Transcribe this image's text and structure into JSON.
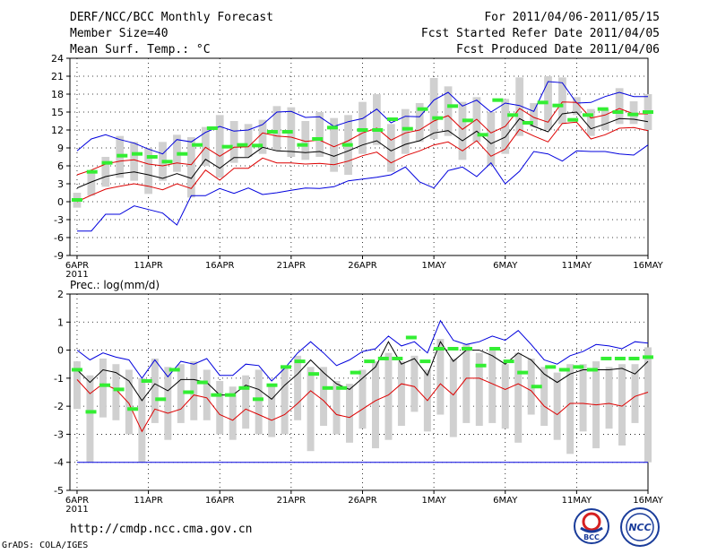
{
  "header": {
    "title": "DERF/NCC/BCC Monthly Forecast",
    "member_size": "Member Size=40",
    "variable": "Mean Surf. Temp.: °C",
    "period": "For 2011/04/06-2011/05/15",
    "refer_date": "Fcst Started Refer Date 2011/04/05",
    "produced_date": "Fcst Produced Date 2011/04/06"
  },
  "footer": {
    "url": "http://cmdp.ncc.cma.gov.cn",
    "grads": "GrADS: COLA/IGES",
    "logo_left_text": "BCC",
    "logo_right_text": "NCC"
  },
  "colors": {
    "max": "#0000dd",
    "min": "#dd0000",
    "mean": "#000000",
    "box": "#d0d0d0",
    "obs": "#33ee33",
    "grid": "#000000"
  },
  "chart_data": [
    {
      "type": "line",
      "title": "Mean Surf. Temp.: °C",
      "ylabel": "°C",
      "ylim": [
        -9,
        24
      ],
      "yticks": [
        -9,
        -6,
        -3,
        0,
        3,
        6,
        9,
        12,
        15,
        18,
        21,
        24
      ],
      "x_ticks": [
        {
          "day": 1,
          "label": "6APR",
          "sub": "2011"
        },
        {
          "day": 6,
          "label": "11APR"
        },
        {
          "day": 11,
          "label": "16APR"
        },
        {
          "day": 16,
          "label": "21APR"
        },
        {
          "day": 21,
          "label": "26APR"
        },
        {
          "day": 26,
          "label": "1MAY"
        },
        {
          "day": 31,
          "label": "6MAY"
        },
        {
          "day": 36,
          "label": "11MAY"
        },
        {
          "day": 41,
          "label": "16MAY"
        }
      ],
      "x_range": [
        0.5,
        41
      ],
      "series": [
        {
          "name": "ensemble max",
          "values": [
            8.5,
            10.5,
            11.2,
            10.4,
            9.8,
            8.8,
            8,
            10.4,
            10,
            11.6,
            12.6,
            11.8,
            12,
            12.9,
            15,
            15.1,
            14.1,
            14.2,
            12.6,
            13.4,
            13.9,
            15.5,
            13.2,
            14.3,
            14.2,
            17,
            18.3,
            16,
            17,
            15,
            16.5,
            16.1,
            15.1,
            20.1,
            19.9,
            16.5,
            16.6,
            17.6,
            18.3,
            17.6,
            17.6
          ]
        },
        {
          "name": "upper",
          "values": [
            4.5,
            5.3,
            6.3,
            6.8,
            7,
            6.3,
            6,
            6.5,
            6.2,
            9.1,
            7.6,
            9.1,
            9.2,
            11.5,
            11,
            10.8,
            10.1,
            10.3,
            9.2,
            10.2,
            11.5,
            12.3,
            10.3,
            11.5,
            12,
            13.5,
            14.4,
            12.1,
            13.8,
            11.5,
            12.6,
            15.6,
            14.1,
            13.3,
            16.7,
            16.6,
            14,
            14.5,
            15.6,
            14.7,
            14.7
          ]
        },
        {
          "name": "ensemble mean",
          "values": [
            2.3,
            3.3,
            4.2,
            4.7,
            5,
            4.5,
            3.9,
            4.7,
            3.9,
            7.1,
            5.6,
            7.4,
            7.4,
            9.1,
            8.5,
            8.4,
            8.2,
            8.4,
            7.6,
            8.5,
            9.5,
            10.2,
            8.5,
            9.6,
            10.2,
            11.5,
            11.9,
            10.2,
            11.8,
            9.7,
            10.8,
            13.9,
            12.6,
            11.7,
            14.7,
            15,
            12.2,
            13,
            13.9,
            13.8,
            13.4
          ]
        },
        {
          "name": "lower",
          "values": [
            0,
            1.1,
            2.1,
            2.6,
            3,
            2.6,
            2,
            3,
            2.2,
            5.3,
            3.6,
            5.6,
            5.6,
            7.3,
            6.5,
            6.5,
            6.3,
            6.4,
            6.2,
            6.8,
            7.7,
            8.3,
            6.5,
            7.7,
            8.5,
            9.5,
            10,
            8.5,
            10.2,
            7.6,
            8.8,
            12.1,
            11,
            10,
            13.1,
            13.3,
            10.5,
            11.2,
            12.3,
            12.4,
            11.9
          ]
        },
        {
          "name": "ensemble min",
          "values": [
            -4.9,
            -4.9,
            -2.1,
            -2.1,
            -0.7,
            -1.3,
            -1.9,
            -3.9,
            1,
            1,
            2.2,
            1.4,
            2.3,
            1.2,
            1.5,
            1.9,
            2.3,
            2.2,
            2.5,
            3.5,
            3.8,
            4.1,
            4.5,
            5.8,
            3.3,
            2.3,
            5.2,
            5.8,
            4.2,
            6.5,
            3,
            5.1,
            8.4,
            8,
            6.8,
            8.5,
            8.4,
            8.4,
            8,
            7.8,
            9.5
          ]
        }
      ],
      "boxes": {
        "lows": [
          -1,
          1,
          2.5,
          4,
          3.5,
          1.3,
          3.5,
          5,
          0.7,
          6,
          4,
          6.5,
          7.5,
          8,
          8.5,
          7.5,
          7,
          7.5,
          5,
          4.5,
          8,
          9.5,
          5,
          8,
          10,
          10.5,
          11,
          7,
          10,
          6,
          8,
          11,
          12.5,
          12,
          13,
          14.5,
          11,
          12,
          13,
          13,
          12
        ],
        "highs": [
          1.5,
          4.8,
          7.5,
          11,
          10,
          9,
          10,
          11.2,
          10.8,
          12.5,
          14.5,
          13.5,
          13,
          13.7,
          16,
          15.8,
          13.5,
          15,
          14,
          14.5,
          16.7,
          18,
          13,
          15.5,
          16.5,
          20.7,
          19.3,
          16.7,
          17.5,
          15,
          17.2,
          20.8,
          16.5,
          21,
          20.8,
          17.5,
          15.5,
          15.5,
          19,
          16.8,
          18
        ]
      },
      "observed": [
        0.3,
        5,
        6.5,
        7.7,
        8,
        7.5,
        6.7,
        8,
        9.5,
        12.3,
        9.2,
        9.5,
        9.4,
        11.7,
        11.7,
        9.5,
        10.5,
        12.4,
        9.5,
        12,
        12,
        13.8,
        12.2,
        15.5,
        14,
        16,
        13.6,
        11.2,
        17,
        14.5,
        13.2,
        16.6,
        16.1,
        13.7,
        14.5,
        15.5,
        15,
        14.6,
        15
      ]
    },
    {
      "type": "line",
      "title": "Prec.: log(mm/d)",
      "ylabel": "log(mm/d)",
      "ylim": [
        -5,
        2
      ],
      "yticks": [
        -5,
        -4,
        -3,
        -2,
        -1,
        0,
        1,
        2
      ],
      "x_ticks": [
        {
          "day": 1,
          "label": "6APR",
          "sub": "2011"
        },
        {
          "day": 6,
          "label": "11APR"
        },
        {
          "day": 11,
          "label": "16APR"
        },
        {
          "day": 16,
          "label": "21APR"
        },
        {
          "day": 21,
          "label": "26APR"
        },
        {
          "day": 26,
          "label": "1MAY"
        },
        {
          "day": 31,
          "label": "6MAY"
        },
        {
          "day": 36,
          "label": "11MAY"
        },
        {
          "day": 41,
          "label": "16MAY"
        }
      ],
      "x_range": [
        0.5,
        41
      ],
      "series": [
        {
          "name": "ensemble max",
          "values": [
            0,
            -0.35,
            -0.1,
            -0.25,
            -0.35,
            -1,
            -0.35,
            -0.95,
            -0.4,
            -0.5,
            -0.3,
            -0.9,
            -0.9,
            -0.5,
            -0.55,
            -1.1,
            -0.65,
            -0.1,
            0.3,
            -0.1,
            -0.55,
            -0.35,
            -0.05,
            0.05,
            0.5,
            0.15,
            0.3,
            -0.1,
            1.05,
            0.35,
            0.2,
            0.3,
            0.5,
            0.35,
            0.7,
            0.2,
            -0.35,
            -0.5,
            -0.2,
            -0.05,
            0.2,
            0.15,
            0.05,
            0.3,
            0.25
          ]
        },
        {
          "name": "ensemble mean",
          "values": [
            -0.7,
            -1.15,
            -0.7,
            -0.8,
            -1.1,
            -1.8,
            -1.2,
            -1.45,
            -1.05,
            -1.05,
            -1.15,
            -1.6,
            -1.6,
            -1.25,
            -1.4,
            -1.75,
            -1.25,
            -0.85,
            -0.35,
            -0.8,
            -1.2,
            -1.4,
            -1,
            -0.6,
            0.3,
            -0.5,
            -0.3,
            -0.9,
            0.3,
            -0.4,
            0,
            0,
            -0.2,
            -0.5,
            -0.1,
            -0.35,
            -0.85,
            -1.15,
            -0.85,
            -0.7,
            -0.7,
            -0.7,
            -0.65,
            -0.85,
            -0.4
          ]
        },
        {
          "name": "lower",
          "values": [
            -1.05,
            -1.55,
            -1.2,
            -1.4,
            -1.9,
            -2.9,
            -2.1,
            -2.25,
            -2.1,
            -1.6,
            -1.7,
            -2.3,
            -2.5,
            -2.1,
            -2.3,
            -2.5,
            -2.3,
            -1.9,
            -1.45,
            -1.8,
            -2.3,
            -2.4,
            -2.1,
            -1.8,
            -1.6,
            -1.2,
            -1.3,
            -1.8,
            -1.2,
            -1.6,
            -1,
            -1,
            -1.2,
            -1.4,
            -1.2,
            -1.45,
            -2,
            -2.3,
            -1.9,
            -1.9,
            -1.95,
            -1.9,
            -2,
            -1.65,
            -1.5
          ]
        },
        {
          "name": "ensemble min",
          "values": [
            -4,
            -4,
            -4,
            -4,
            -4,
            -4,
            -4,
            -4,
            -4,
            -4,
            -4,
            -4,
            -4,
            -4,
            -4,
            -4,
            -4,
            -4,
            -4,
            -4,
            -4,
            -4,
            -4,
            -4,
            -4,
            -4,
            -4,
            -4,
            -4,
            -4,
            -4,
            -4,
            -4,
            -4,
            -4,
            -4,
            -4,
            -4,
            -4,
            -4,
            -4,
            -4,
            -4,
            -4,
            -4
          ]
        }
      ],
      "boxes": {
        "lows": [
          -2.1,
          -4,
          -2.4,
          -2.5,
          -3,
          -4,
          -2.6,
          -3.2,
          -2.6,
          -2.5,
          -2.5,
          -3,
          -3.2,
          -2.8,
          -3,
          -3.1,
          -3,
          -2.5,
          -3.6,
          -2.7,
          -3,
          -3.3,
          -2.8,
          -3.5,
          -3.2,
          -2.7,
          -2.2,
          -2.9,
          -2.3,
          -3.1,
          -2.6,
          -2.7,
          -2.6,
          -2.8,
          -3.3,
          -2.3,
          -2.7,
          -3.2,
          -3.7,
          -2.9,
          -3.5,
          -2.8,
          -3.4,
          -2.6,
          -4
        ],
        "highs": [
          -0.4,
          -0.9,
          -0.3,
          -0.5,
          -0.7,
          -1,
          -0.3,
          -0.6,
          -0.5,
          -0.4,
          -0.7,
          -1.1,
          -1.3,
          -0.9,
          -0.7,
          -1.2,
          -0.6,
          -0.2,
          -0.6,
          -0.6,
          -1.1,
          -1.2,
          -0.7,
          -0.4,
          -0.1,
          -0.4,
          -0.2,
          -0.7,
          0.4,
          -0.3,
          0.2,
          -0.1,
          0,
          -0.5,
          -0.1,
          -0.3,
          -0.6,
          -0.8,
          -0.5,
          -0.5,
          -0.4,
          -0.6,
          -0.5,
          -0.5,
          0.1
        ]
      },
      "observed": [
        -0.7,
        -2.2,
        -1.25,
        -1.4,
        -2.1,
        -1.1,
        -1.75,
        -0.7,
        -1.5,
        -1.15,
        -1.6,
        -1.6,
        -1.35,
        -1.75,
        -1.25,
        -0.6,
        -0.4,
        -0.85,
        -1.35,
        -1.35,
        -0.8,
        -0.4,
        -0.3,
        -0.3,
        0.45,
        -0.4,
        0.05,
        0.05,
        0.05,
        -0.55,
        0.05,
        -0.4,
        -0.8,
        -1.3,
        -0.6,
        -0.7,
        -0.6,
        -0.7,
        -0.3,
        -0.3,
        -0.3,
        -0.25
      ]
    }
  ]
}
